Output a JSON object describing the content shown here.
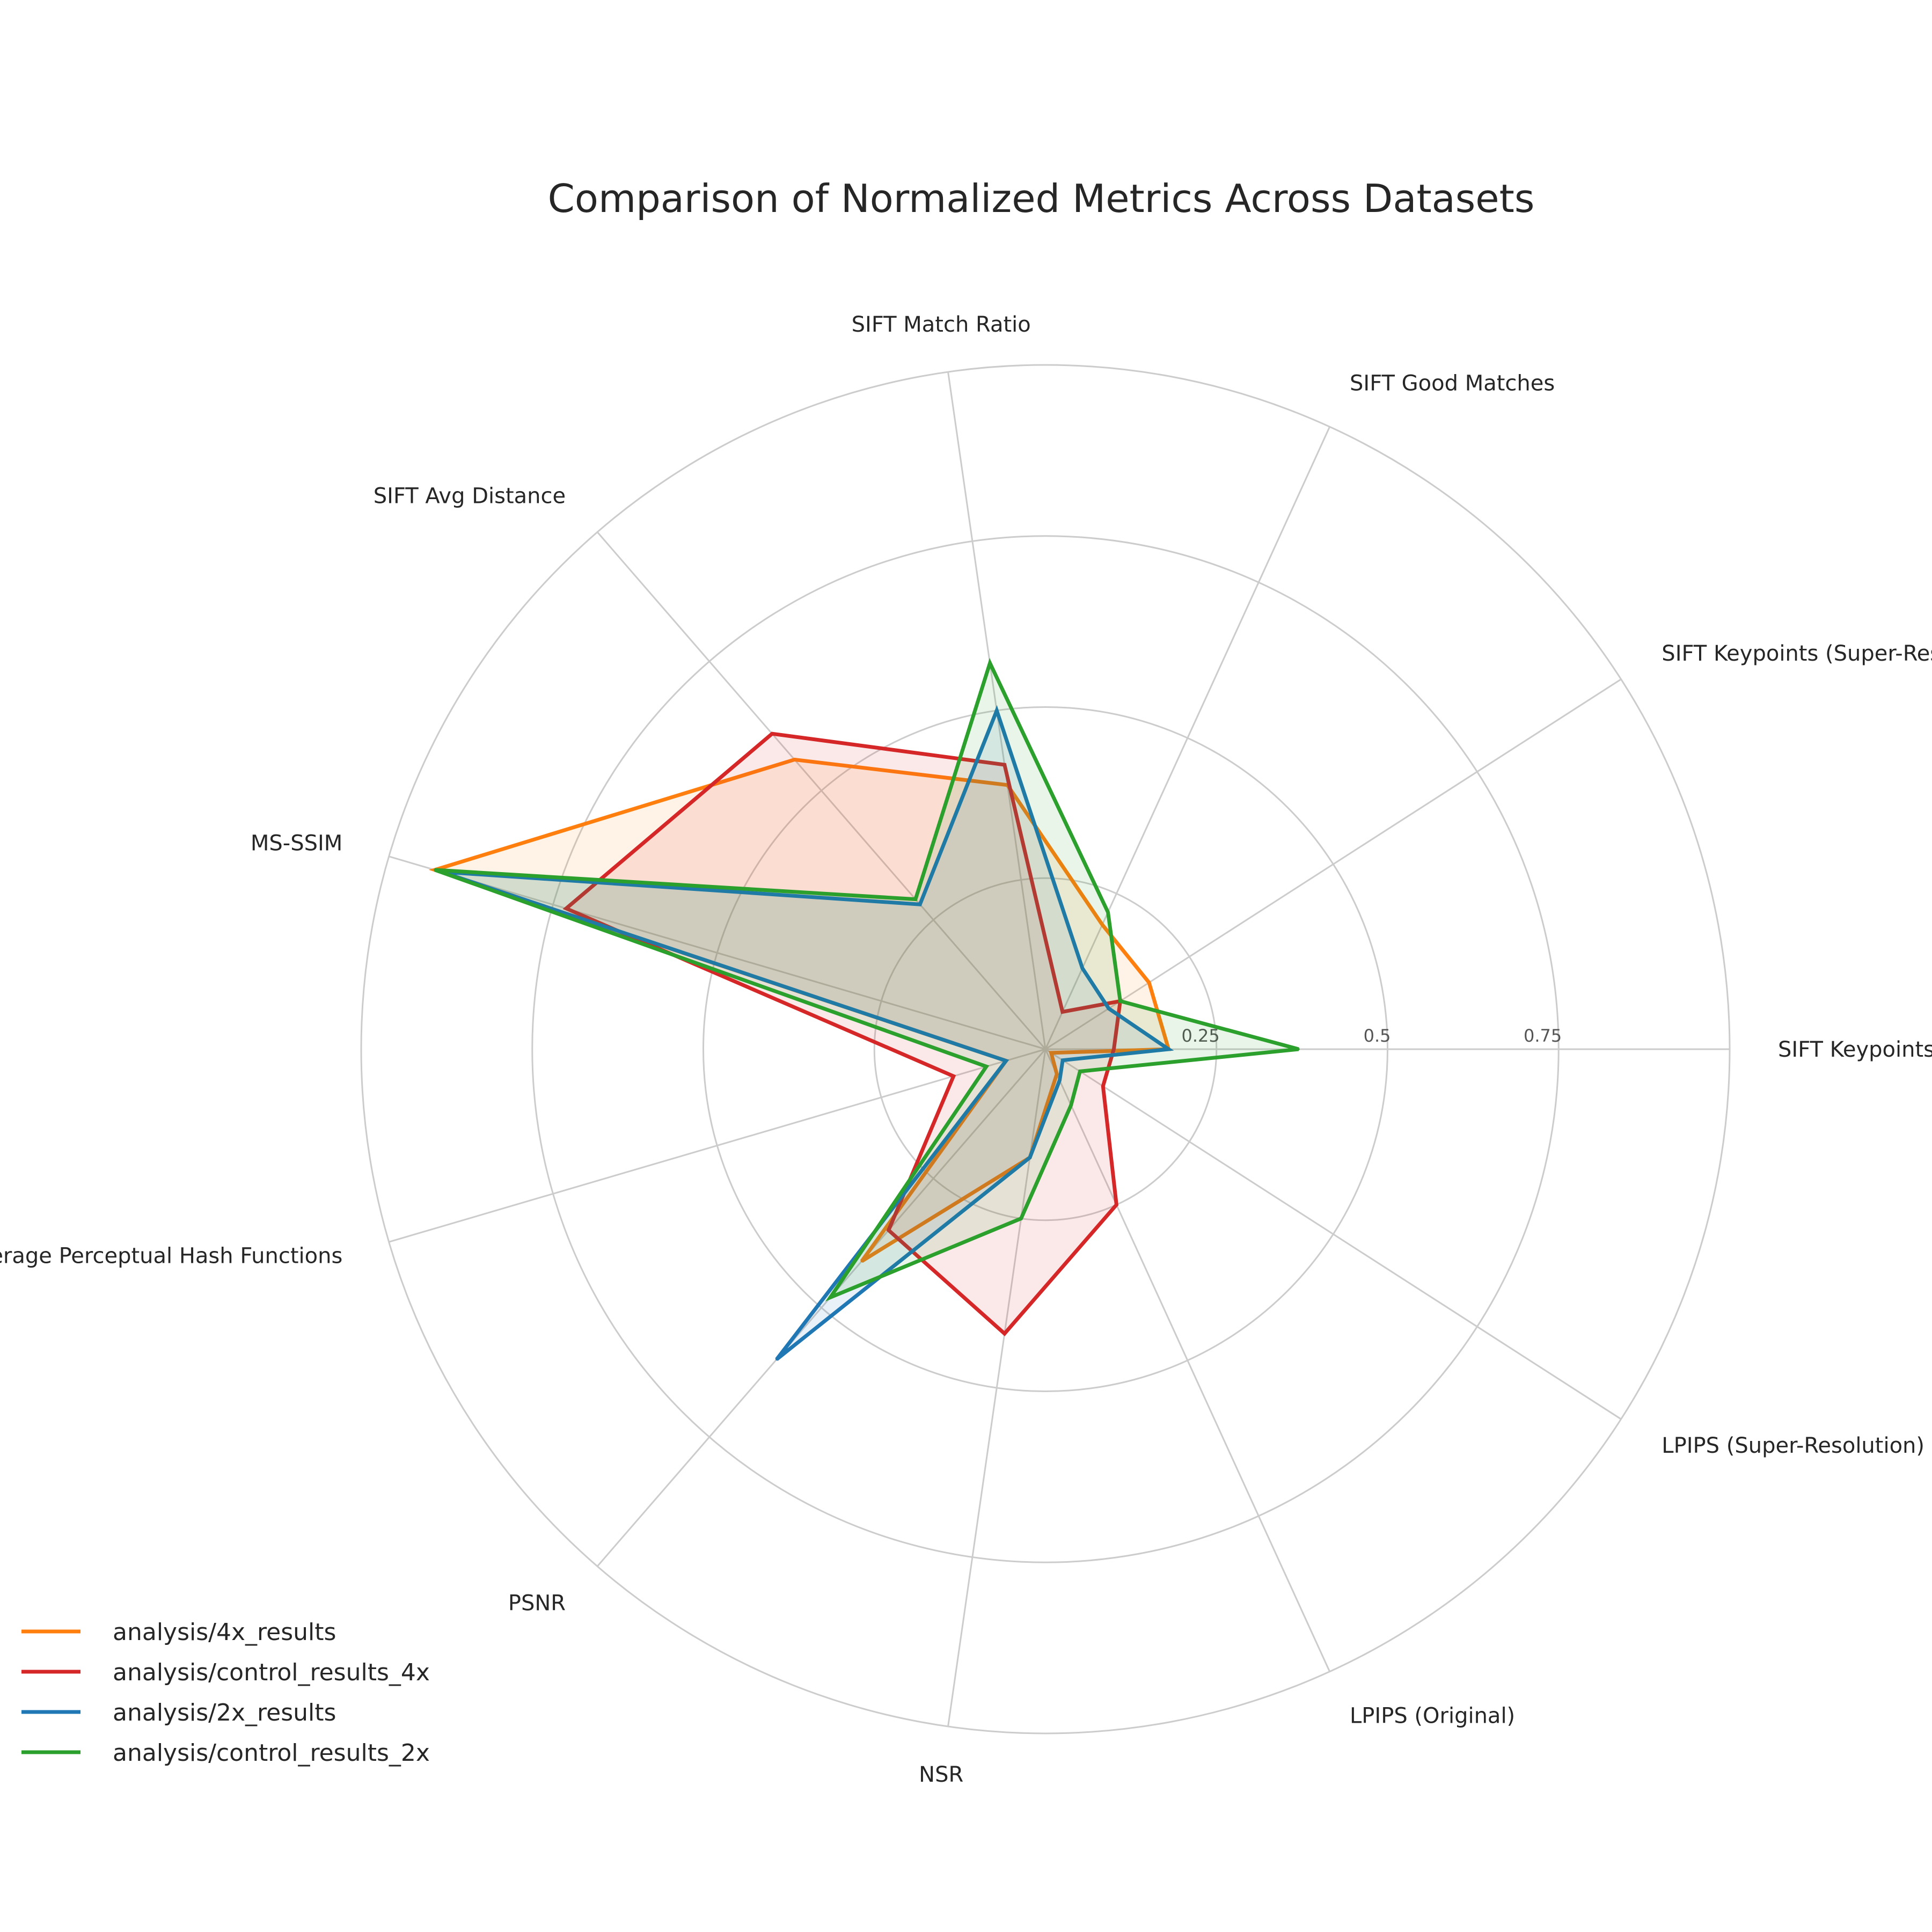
{
  "chart_data": {
    "type": "radar",
    "title": "Comparison of Normalized Metrics Across Datasets",
    "axes": [
      "SIFT Keypoints (Original)",
      "SIFT Keypoints (Super-Resolution)",
      "SIFT Good Matches",
      "SIFT Match Ratio",
      "SIFT Avg Distance",
      "MS-SSIM",
      "Average Perceptual Hash Functions",
      "PSNR",
      "NSR",
      "LPIPS (Original)",
      "LPIPS (Super-Resolution)"
    ],
    "radial_ticks": [
      0.25,
      0.5,
      0.75
    ],
    "radial_tick_labels": [
      "0.25",
      "0.5",
      "0.75"
    ],
    "rlim": [
      0,
      1
    ],
    "grid": true,
    "legend_position": "bottom-left",
    "series": [
      {
        "name": "analysis/4x_results",
        "color": "#ff7f0e",
        "values": [
          0.18,
          0.18,
          0.2,
          0.39,
          0.56,
          0.93,
          0.06,
          0.41,
          0.16,
          0.04,
          0.01
        ]
      },
      {
        "name": "analysis/control_results_4x",
        "color": "#d62728",
        "values": [
          0.1,
          0.13,
          0.06,
          0.42,
          0.61,
          0.73,
          0.14,
          0.35,
          0.42,
          0.25,
          0.1
        ]
      },
      {
        "name": "analysis/2x_results",
        "color": "#1f77b4",
        "values": [
          0.18,
          0.11,
          0.13,
          0.5,
          0.28,
          0.92,
          0.06,
          0.6,
          0.16,
          0.05,
          0.03
        ]
      },
      {
        "name": "analysis/control_results_2x",
        "color": "#2ca02c",
        "values": [
          0.37,
          0.13,
          0.22,
          0.57,
          0.29,
          0.93,
          0.09,
          0.48,
          0.25,
          0.09,
          0.06
        ]
      }
    ]
  }
}
